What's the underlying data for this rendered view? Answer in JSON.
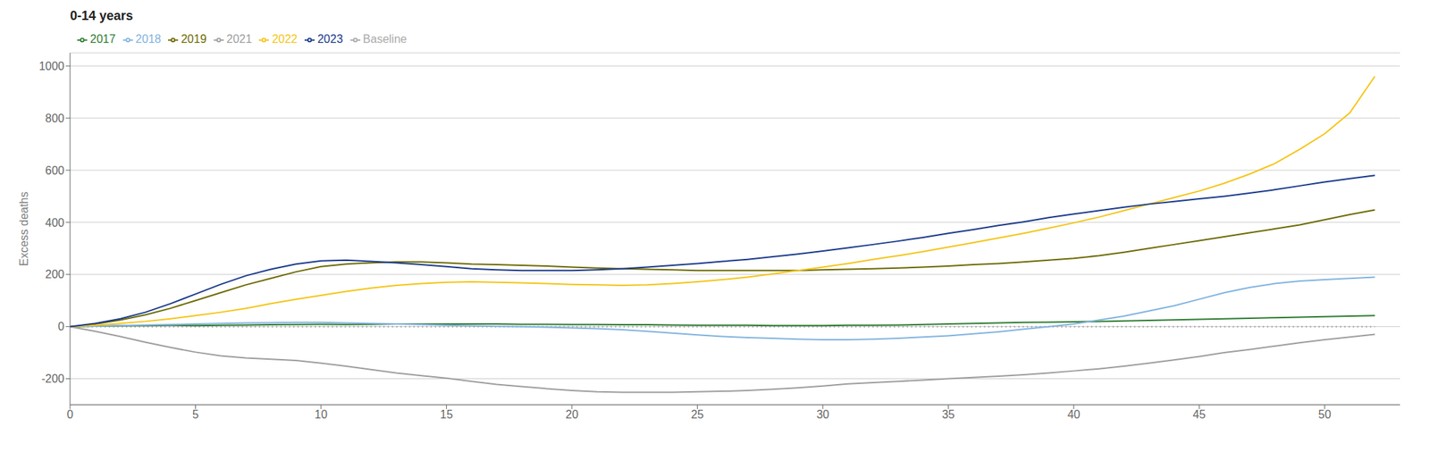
{
  "chart_data": {
    "type": "line",
    "title": "0-14 years",
    "y_label": "Excess deaths",
    "x": [
      0,
      1,
      2,
      3,
      4,
      5,
      6,
      7,
      8,
      9,
      10,
      11,
      12,
      13,
      14,
      15,
      16,
      17,
      18,
      19,
      20,
      21,
      22,
      23,
      24,
      25,
      26,
      27,
      28,
      29,
      30,
      31,
      32,
      33,
      34,
      35,
      36,
      37,
      38,
      39,
      40,
      41,
      42,
      43,
      44,
      45,
      46,
      47,
      48,
      49,
      50,
      51,
      52
    ],
    "xlim": [
      0,
      53
    ],
    "xticks": [
      0,
      5,
      10,
      15,
      20,
      25,
      30,
      35,
      40,
      45,
      50
    ],
    "ylim": [
      -300,
      1050
    ],
    "yticks": [
      -200,
      0,
      200,
      400,
      600,
      800,
      1000
    ],
    "grid": "y",
    "legend": "top",
    "series": [
      {
        "name": "Baseline",
        "color": "#aaaaaa",
        "line_style": "dotted",
        "values": [
          0,
          0,
          0,
          0,
          0,
          0,
          0,
          0,
          0,
          0,
          0,
          0,
          0,
          0,
          0,
          0,
          0,
          0,
          0,
          0,
          0,
          0,
          0,
          0,
          0,
          0,
          0,
          0,
          0,
          0,
          0,
          0,
          0,
          0,
          0,
          0,
          0,
          0,
          0,
          0,
          0,
          0,
          0,
          0,
          0,
          0,
          0,
          0,
          0,
          0,
          0,
          0,
          0
        ]
      },
      {
        "name": "2017",
        "color": "#2e7d32",
        "line_style": "solid",
        "values": [
          0,
          2,
          3,
          4,
          5,
          4,
          5,
          6,
          7,
          8,
          9,
          8,
          9,
          10,
          10,
          10,
          10,
          10,
          9,
          9,
          8,
          8,
          7,
          7,
          6,
          5,
          5,
          5,
          4,
          4,
          4,
          5,
          5,
          6,
          8,
          10,
          12,
          14,
          16,
          17,
          18,
          20,
          22,
          24,
          26,
          28,
          30,
          32,
          34,
          36,
          38,
          40,
          42
        ]
      },
      {
        "name": "2018",
        "color": "#82b4e0",
        "line_style": "solid",
        "values": [
          0,
          2,
          4,
          6,
          8,
          10,
          12,
          14,
          15,
          16,
          16,
          14,
          12,
          10,
          8,
          5,
          3,
          1,
          0,
          -2,
          -5,
          -8,
          -12,
          -18,
          -25,
          -32,
          -38,
          -42,
          -45,
          -48,
          -50,
          -50,
          -48,
          -45,
          -40,
          -35,
          -28,
          -20,
          -10,
          0,
          10,
          25,
          40,
          60,
          80,
          105,
          130,
          150,
          165,
          175,
          180,
          185,
          190
        ]
      },
      {
        "name": "2019",
        "color": "#6d6a00",
        "line_style": "solid",
        "values": [
          0,
          10,
          25,
          45,
          70,
          100,
          130,
          160,
          185,
          210,
          230,
          240,
          245,
          248,
          248,
          245,
          240,
          238,
          235,
          232,
          228,
          225,
          222,
          220,
          218,
          215,
          215,
          215,
          215,
          215,
          218,
          220,
          222,
          225,
          228,
          232,
          238,
          242,
          248,
          255,
          262,
          272,
          285,
          300,
          315,
          330,
          345,
          360,
          375,
          390,
          410,
          430,
          448
        ]
      },
      {
        "name": "2021",
        "color": "#9e9e9e",
        "line_style": "solid",
        "values": [
          0,
          -18,
          -38,
          -60,
          -80,
          -98,
          -112,
          -120,
          -125,
          -130,
          -140,
          -152,
          -165,
          -178,
          -188,
          -198,
          -210,
          -222,
          -230,
          -238,
          -245,
          -250,
          -252,
          -252,
          -252,
          -250,
          -248,
          -245,
          -240,
          -235,
          -228,
          -220,
          -215,
          -210,
          -205,
          -200,
          -195,
          -190,
          -185,
          -178,
          -170,
          -162,
          -152,
          -140,
          -128,
          -115,
          -100,
          -88,
          -75,
          -62,
          -50,
          -40,
          -30
        ]
      },
      {
        "name": "2022",
        "color": "#f5c518",
        "line_style": "solid",
        "values": [
          0,
          5,
          12,
          20,
          30,
          42,
          55,
          70,
          88,
          105,
          120,
          135,
          148,
          158,
          165,
          170,
          172,
          170,
          168,
          165,
          162,
          160,
          158,
          160,
          165,
          172,
          180,
          190,
          202,
          215,
          228,
          242,
          258,
          272,
          288,
          305,
          322,
          340,
          358,
          378,
          398,
          420,
          445,
          470,
          495,
          520,
          550,
          585,
          625,
          680,
          740,
          820,
          960
        ]
      },
      {
        "name": "2023",
        "color": "#1a3a8a",
        "line_style": "solid",
        "values": [
          0,
          12,
          30,
          55,
          88,
          125,
          162,
          195,
          220,
          240,
          252,
          255,
          250,
          245,
          238,
          230,
          222,
          218,
          215,
          215,
          215,
          218,
          222,
          228,
          235,
          242,
          250,
          258,
          268,
          278,
          290,
          302,
          315,
          328,
          342,
          358,
          372,
          388,
          402,
          418,
          432,
          445,
          458,
          470,
          480,
          490,
          500,
          512,
          525,
          540,
          555,
          568,
          580
        ]
      }
    ]
  }
}
